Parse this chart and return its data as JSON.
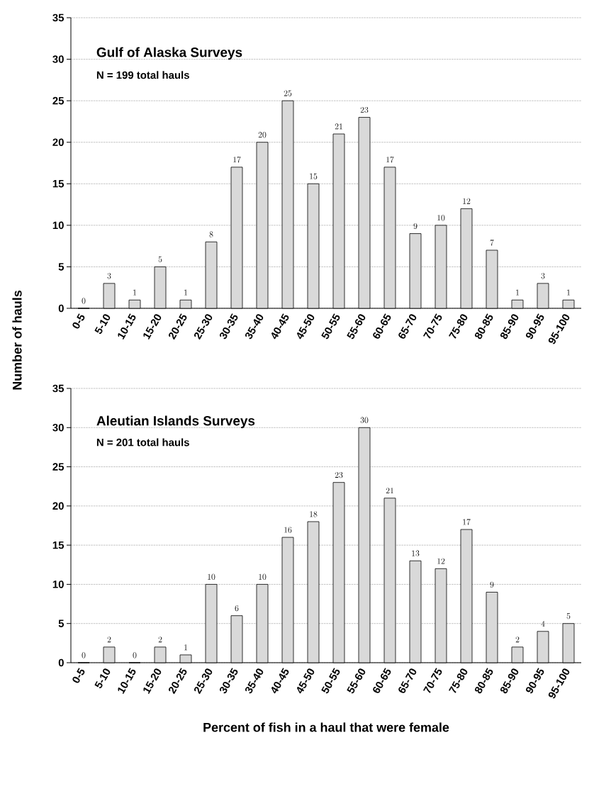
{
  "chart_data": [
    {
      "type": "bar",
      "title": "Gulf of Alaska Surveys",
      "annotations": [
        "N = 199 total hauls"
      ],
      "ylabel": "Number of hauls",
      "categories": [
        "0-5",
        "5-10",
        "10-15",
        "15-20",
        "20-25",
        "25-30",
        "30-35",
        "35-40",
        "40-45",
        "45-50",
        "50-55",
        "55-60",
        "60-65",
        "65-70",
        "70-75",
        "75-80",
        "80-85",
        "85-90",
        "90-95",
        "95-100"
      ],
      "values": [
        0,
        3,
        1,
        5,
        1,
        8,
        17,
        20,
        25,
        15,
        21,
        23,
        17,
        9,
        10,
        12,
        7,
        1,
        3,
        1
      ],
      "color": "#d9d9d9",
      "ylim": [
        0,
        35
      ],
      "yticks": [
        0,
        5,
        10,
        15,
        20,
        25,
        30,
        35
      ],
      "grid": "y",
      "data_labels": true
    },
    {
      "type": "bar",
      "title": "Aleutian Islands Surveys",
      "annotations": [
        "N = 201 total hauls"
      ],
      "xlabel": "Percent of fish in a haul that were female",
      "categories": [
        "0-5",
        "5-10",
        "10-15",
        "15-20",
        "20-25",
        "25-30",
        "30-35",
        "35-40",
        "40-45",
        "45-50",
        "50-55",
        "55-60",
        "60-65",
        "65-70",
        "70-75",
        "75-80",
        "80-85",
        "85-90",
        "90-95",
        "95-100"
      ],
      "values": [
        0,
        2,
        0,
        2,
        1,
        10,
        6,
        10,
        16,
        18,
        23,
        30,
        21,
        13,
        12,
        17,
        9,
        2,
        4,
        5
      ],
      "color": "#d9d9d9",
      "ylim": [
        0,
        35
      ],
      "yticks": [
        0,
        5,
        10,
        15,
        20,
        25,
        30,
        35
      ],
      "grid": "y",
      "data_labels": true
    }
  ]
}
